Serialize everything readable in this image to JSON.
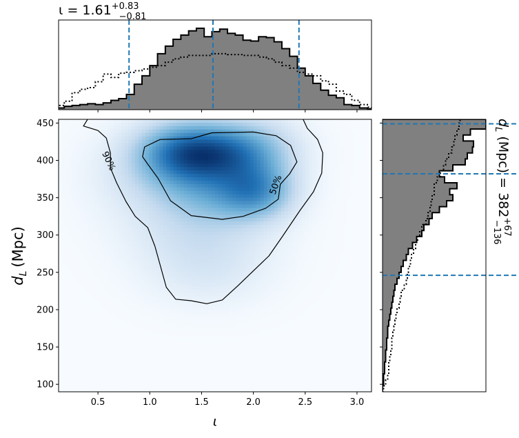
{
  "chart_data": [
    {
      "type": "heatmap",
      "panel": "joint",
      "xlabel": "ι",
      "ylabel_main": "d",
      "ylabel_sub": "L",
      "ylabel_unit": "(Mpc)",
      "xlim": [
        0.12,
        3.14
      ],
      "ylim": [
        90,
        455
      ],
      "xticks": [
        0.5,
        1.0,
        1.5,
        2.0,
        2.5,
        3.0
      ],
      "xtick_labels": [
        "0.5",
        "1.0",
        "1.5",
        "2.0",
        "2.5",
        "3.0"
      ],
      "yticks": [
        100,
        150,
        200,
        250,
        300,
        350,
        400,
        450
      ],
      "ytick_labels": [
        "100",
        "150",
        "200",
        "250",
        "300",
        "350",
        "400",
        "450"
      ],
      "colormap": "Blues",
      "density_modes": [
        {
          "x": 1.3,
          "y": 410,
          "sx": 0.3,
          "sy": 28,
          "w": 1.0
        },
        {
          "x": 1.62,
          "y": 410,
          "sx": 0.3,
          "sy": 25,
          "w": 0.85
        },
        {
          "x": 2.02,
          "y": 358,
          "sx": 0.25,
          "sy": 25,
          "w": 0.9
        },
        {
          "x": 2.0,
          "y": 412,
          "sx": 0.3,
          "sy": 30,
          "w": 0.6
        },
        {
          "x": 1.55,
          "y": 360,
          "sx": 0.35,
          "sy": 30,
          "w": 0.55
        },
        {
          "x": 1.5,
          "y": 300,
          "sx": 0.45,
          "sy": 35,
          "w": 0.28
        },
        {
          "x": 1.55,
          "y": 245,
          "sx": 0.4,
          "sy": 30,
          "w": 0.14
        },
        {
          "x": 0.9,
          "y": 380,
          "sx": 0.35,
          "sy": 40,
          "w": 0.2
        }
      ],
      "contours": [
        {
          "label": "50%",
          "label_position": [
            2.22,
            367
          ],
          "path": [
            [
              0.93,
              405
            ],
            [
              0.95,
              418
            ],
            [
              1.1,
              428
            ],
            [
              1.4,
              429
            ],
            [
              1.6,
              437
            ],
            [
              2.0,
              438
            ],
            [
              2.22,
              433
            ],
            [
              2.36,
              420
            ],
            [
              2.42,
              398
            ],
            [
              2.35,
              382
            ],
            [
              2.26,
              368
            ],
            [
              2.24,
              348
            ],
            [
              2.12,
              336
            ],
            [
              1.9,
              325
            ],
            [
              1.7,
              321
            ],
            [
              1.4,
              326
            ],
            [
              1.2,
              346
            ],
            [
              1.08,
              376
            ],
            [
              0.98,
              395
            ]
          ]
        },
        {
          "label": "90%",
          "label_position": [
            0.6,
            399
          ],
          "path": [
            [
              0.4,
              455
            ],
            [
              0.36,
              446
            ],
            [
              0.5,
              440
            ],
            [
              0.58,
              430
            ],
            [
              0.62,
              410
            ],
            [
              0.62,
              390
            ],
            [
              0.68,
              370
            ],
            [
              0.77,
              345
            ],
            [
              0.86,
              325
            ],
            [
              0.98,
              310
            ],
            [
              1.05,
              285
            ],
            [
              1.1,
              260
            ],
            [
              1.16,
              230
            ],
            [
              1.25,
              214
            ],
            [
              1.4,
              212
            ],
            [
              1.55,
              208
            ],
            [
              1.7,
              213
            ],
            [
              1.85,
              232
            ],
            [
              2.0,
              252
            ],
            [
              2.15,
              272
            ],
            [
              2.28,
              298
            ],
            [
              2.45,
              333
            ],
            [
              2.58,
              358
            ],
            [
              2.66,
              383
            ],
            [
              2.67,
              410
            ],
            [
              2.62,
              428
            ],
            [
              2.52,
              443
            ],
            [
              2.48,
              455
            ]
          ]
        }
      ]
    },
    {
      "type": "bar",
      "panel": "top-marginal",
      "parameter": "ι",
      "title_value": "ι = 1.61",
      "title_sup": "+0.83",
      "title_sub": "−0.81",
      "bin_edges": [
        0.1,
        0.175,
        0.25,
        0.325,
        0.4,
        0.475,
        0.55,
        0.625,
        0.7,
        0.775,
        0.85,
        0.925,
        1.0,
        1.075,
        1.15,
        1.225,
        1.3,
        1.375,
        1.45,
        1.525,
        1.6,
        1.675,
        1.75,
        1.825,
        1.9,
        1.975,
        2.05,
        2.125,
        2.2,
        2.275,
        2.35,
        2.425,
        2.5,
        2.575,
        2.65,
        2.725,
        2.8,
        2.875,
        2.95,
        3.025,
        3.1,
        3.14
      ],
      "values": [
        0.02,
        0.04,
        0.05,
        0.06,
        0.07,
        0.06,
        0.08,
        0.11,
        0.13,
        0.18,
        0.3,
        0.4,
        0.52,
        0.66,
        0.75,
        0.83,
        0.88,
        0.93,
        0.96,
        0.86,
        0.92,
        0.95,
        0.9,
        0.88,
        0.82,
        0.81,
        0.86,
        0.85,
        0.8,
        0.72,
        0.63,
        0.49,
        0.4,
        0.31,
        0.23,
        0.17,
        0.14,
        0.06,
        0.05,
        0.02,
        0.01
      ],
      "prior_values": [
        0.05,
        0.1,
        0.2,
        0.24,
        0.26,
        0.33,
        0.42,
        0.38,
        0.43,
        0.44,
        0.46,
        0.48,
        0.5,
        0.52,
        0.56,
        0.6,
        0.62,
        0.64,
        0.64,
        0.64,
        0.66,
        0.66,
        0.65,
        0.65,
        0.64,
        0.64,
        0.62,
        0.6,
        0.56,
        0.52,
        0.49,
        0.44,
        0.42,
        0.4,
        0.34,
        0.3,
        0.22,
        0.18,
        0.11,
        0.06,
        0.03
      ],
      "ymax": 0.96,
      "quantiles": [
        0.8,
        1.61,
        2.44
      ],
      "xlim": [
        0.12,
        3.14
      ]
    },
    {
      "type": "bar",
      "panel": "right-marginal",
      "parameter": "d_L",
      "title_prefix": "d",
      "title_sub_L": "L",
      "title_unit_value": " (Mpc) = 382",
      "title_sup": "+67",
      "title_sub": "−136",
      "bin_edges": [
        90,
        98,
        106,
        114,
        122,
        130,
        138,
        146,
        154,
        162,
        170,
        178,
        186,
        194,
        202,
        210,
        218,
        226,
        234,
        242,
        250,
        258,
        266,
        274,
        282,
        290,
        298,
        306,
        314,
        322,
        330,
        338,
        346,
        354,
        362,
        370,
        378,
        386,
        394,
        402,
        410,
        418,
        426,
        434,
        442,
        450,
        455
      ],
      "values": [
        0.0,
        0.01,
        0.01,
        0.02,
        0.02,
        0.03,
        0.03,
        0.04,
        0.04,
        0.05,
        0.05,
        0.06,
        0.07,
        0.08,
        0.09,
        0.1,
        0.11,
        0.12,
        0.14,
        0.16,
        0.18,
        0.2,
        0.23,
        0.25,
        0.29,
        0.33,
        0.38,
        0.4,
        0.45,
        0.48,
        0.55,
        0.62,
        0.68,
        0.65,
        0.72,
        0.6,
        0.55,
        0.68,
        0.8,
        0.82,
        0.87,
        0.88,
        0.78,
        0.85,
        1.0,
        1.0
      ],
      "prior_values": [
        0.01,
        0.03,
        0.05,
        0.06,
        0.06,
        0.07,
        0.08,
        0.09,
        0.09,
        0.1,
        0.11,
        0.12,
        0.13,
        0.14,
        0.16,
        0.17,
        0.18,
        0.21,
        0.23,
        0.24,
        0.25,
        0.27,
        0.28,
        0.3,
        0.32,
        0.34,
        0.36,
        0.38,
        0.42,
        0.44,
        0.46,
        0.47,
        0.48,
        0.5,
        0.5,
        0.53,
        0.56,
        0.59,
        0.61,
        0.64,
        0.67,
        0.69,
        0.7,
        0.72,
        0.74,
        0.75
      ],
      "xmax": 1.0,
      "quantiles": [
        246,
        382,
        449
      ],
      "ylim": [
        90,
        455
      ]
    }
  ]
}
